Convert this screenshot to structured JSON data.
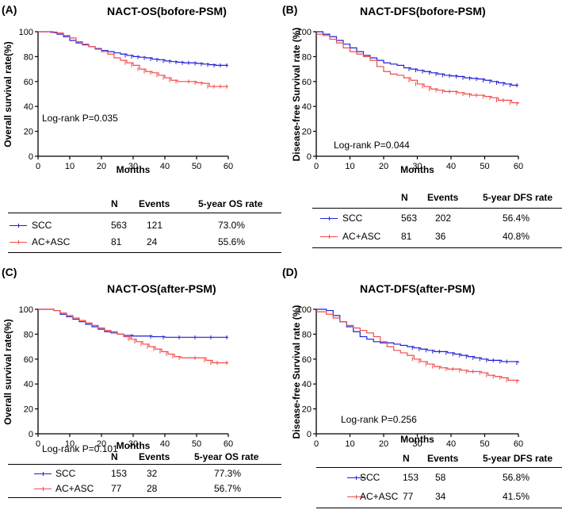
{
  "colors": {
    "scc": "#1f1fd6",
    "ac": "#f24a4a",
    "axis": "#000000"
  },
  "table_headers": {
    "n": "N",
    "events": "Events"
  },
  "chart_data": [
    {
      "type": "line",
      "label": "(A)",
      "title": "NACT-OS(bofore-PSM)",
      "xlabel": "Months",
      "ylabel": "Overall  survival rate(%)",
      "xlim": [
        0,
        60
      ],
      "ylim": [
        0,
        100
      ],
      "xticks": [
        0,
        10,
        20,
        30,
        40,
        50,
        60
      ],
      "yticks": [
        0,
        20,
        40,
        60,
        80,
        100
      ],
      "logrank": "Log-rank P=0.035",
      "rate_header": "5-year OS rate",
      "series": [
        {
          "name": "SCC",
          "n": "563",
          "events": "121",
          "rate": "73.0%",
          "x": [
            0,
            4,
            6,
            8,
            10,
            12,
            14,
            16,
            18,
            20,
            22,
            24,
            26,
            28,
            30,
            32,
            34,
            36,
            38,
            40,
            42,
            44,
            46,
            48,
            50,
            52,
            54,
            56,
            58,
            60
          ],
          "y": [
            100,
            99.5,
            98,
            96,
            93,
            91,
            89.5,
            88,
            86.5,
            85,
            84,
            83,
            82,
            81,
            80,
            79.5,
            79,
            78,
            77.5,
            76.5,
            76,
            75.5,
            75,
            75,
            74.5,
            74,
            73.5,
            73,
            73,
            73
          ]
        },
        {
          "name": "AC+ASC",
          "n": "81",
          "events": "24",
          "rate": "55.6%",
          "x": [
            0,
            5,
            8,
            10,
            12,
            14,
            16,
            18,
            20,
            22,
            24,
            26,
            28,
            30,
            32,
            34,
            36,
            38,
            40,
            42,
            44,
            48,
            50,
            52,
            54,
            56,
            58,
            60
          ],
          "y": [
            100,
            99,
            97,
            95,
            92,
            90,
            88,
            86,
            84,
            82,
            79,
            77,
            75,
            73,
            70,
            68,
            67,
            65,
            63,
            61,
            60,
            60,
            59,
            58.5,
            56,
            56,
            56,
            56
          ]
        }
      ]
    },
    {
      "type": "line",
      "label": "(B)",
      "title": "NACT-DFS(bofore-PSM)",
      "xlabel": "Months",
      "ylabel": "Disease-free Survival rate (%)",
      "xlim": [
        0,
        60
      ],
      "ylim": [
        0,
        100
      ],
      "xticks": [
        0,
        10,
        20,
        30,
        40,
        50,
        60
      ],
      "yticks": [
        0,
        20,
        40,
        60,
        80,
        100
      ],
      "logrank": "Log-rank P=0.044",
      "rate_header": "5-year DFS rate",
      "series": [
        {
          "name": "SCC",
          "n": "563",
          "events": "202",
          "rate": "56.4%",
          "x": [
            0,
            2,
            4,
            6,
            8,
            10,
            12,
            14,
            16,
            18,
            20,
            22,
            24,
            26,
            28,
            30,
            32,
            34,
            36,
            38,
            40,
            42,
            44,
            46,
            48,
            50,
            52,
            54,
            56,
            58,
            60
          ],
          "y": [
            100,
            98,
            96,
            93,
            90,
            87,
            84,
            81,
            79,
            77,
            75,
            74,
            73,
            71,
            70,
            69,
            68,
            67,
            66,
            65,
            64.5,
            64,
            63,
            62.5,
            62,
            61,
            60,
            59,
            58,
            57,
            57
          ]
        },
        {
          "name": "AC+ASC",
          "n": "81",
          "events": "36",
          "rate": "40.8%",
          "x": [
            0,
            2,
            4,
            6,
            8,
            10,
            12,
            14,
            16,
            18,
            20,
            22,
            24,
            26,
            28,
            30,
            32,
            34,
            36,
            38,
            40,
            42,
            44,
            46,
            48,
            50,
            52,
            54,
            56,
            58,
            60
          ],
          "y": [
            98,
            97,
            94,
            91,
            87,
            84,
            82,
            80,
            77,
            72,
            68,
            66,
            65,
            63,
            61,
            58,
            56,
            54,
            53,
            52,
            52,
            51,
            50,
            49,
            49,
            48,
            47,
            45,
            45,
            43,
            42
          ]
        }
      ]
    },
    {
      "type": "line",
      "label": "(C)",
      "title": "NACT-OS(after-PSM)",
      "xlabel": "Months",
      "ylabel": "Overall  survival rate(%)",
      "xlim": [
        0,
        60
      ],
      "ylim": [
        0,
        100
      ],
      "xticks": [
        0,
        10,
        20,
        30,
        40,
        50,
        60
      ],
      "yticks": [
        0,
        20,
        40,
        60,
        80,
        100
      ],
      "logrank": "Log-rank P=0.101",
      "rate_header": "5-year OS rate",
      "series": [
        {
          "name": "SCC",
          "n": "153",
          "events": "32",
          "rate": "77.3%",
          "x": [
            0,
            5,
            7,
            9,
            11,
            13,
            15,
            17,
            19,
            21,
            23,
            25,
            27,
            30,
            36,
            40,
            45,
            50,
            55,
            60
          ],
          "y": [
            100,
            99,
            96,
            94,
            92,
            90,
            88,
            86,
            84,
            82,
            81,
            80,
            79,
            78.5,
            78,
            77.5,
            77.5,
            77.5,
            77.5,
            77.5
          ]
        },
        {
          "name": "AC+ASC",
          "n": "77",
          "events": "28",
          "rate": "56.7%",
          "x": [
            0,
            5,
            7,
            9,
            11,
            13,
            15,
            17,
            19,
            21,
            23,
            25,
            27,
            29,
            31,
            33,
            35,
            37,
            39,
            41,
            43,
            45,
            50,
            53,
            55,
            57,
            60
          ],
          "y": [
            100,
            99,
            97,
            95,
            93,
            91,
            89,
            87,
            85,
            83,
            82,
            80,
            78,
            76,
            74,
            72,
            70,
            68,
            66,
            64,
            62,
            61,
            61,
            59,
            57,
            57,
            57
          ]
        }
      ]
    },
    {
      "type": "line",
      "label": "(D)",
      "title": "NACT-DFS(after-PSM)",
      "xlabel": "Months",
      "ylabel": "Disease-free Survival rate (%)",
      "xlim": [
        0,
        60
      ],
      "ylim": [
        0,
        100
      ],
      "xticks": [
        0,
        10,
        20,
        30,
        40,
        50,
        60
      ],
      "yticks": [
        0,
        20,
        40,
        60,
        80,
        100
      ],
      "logrank": "Log-rank P=0.256",
      "rate_header": "5-year DFS rate",
      "series": [
        {
          "name": "SCC",
          "n": "153",
          "events": "58",
          "rate": "56.8%",
          "x": [
            0,
            3,
            5,
            7,
            9,
            11,
            13,
            15,
            17,
            19,
            21,
            23,
            25,
            27,
            29,
            31,
            33,
            35,
            37,
            39,
            41,
            43,
            45,
            47,
            49,
            51,
            53,
            55,
            57,
            60
          ],
          "y": [
            100,
            99,
            95,
            90,
            86,
            82,
            78,
            76,
            74,
            73,
            73,
            72,
            71,
            70,
            69,
            68,
            67,
            66,
            66,
            65,
            64,
            63,
            62,
            61,
            60,
            59,
            59,
            58,
            58,
            57
          ]
        },
        {
          "name": "AC+ASC",
          "n": "77",
          "events": "34",
          "rate": "41.5%",
          "x": [
            0,
            3,
            5,
            7,
            9,
            11,
            13,
            15,
            17,
            19,
            21,
            23,
            25,
            27,
            29,
            31,
            33,
            35,
            37,
            39,
            41,
            43,
            45,
            47,
            49,
            51,
            53,
            55,
            57,
            60
          ],
          "y": [
            98,
            96,
            93,
            90,
            87,
            85,
            83,
            81,
            78,
            74,
            70,
            67,
            65,
            63,
            60,
            58,
            56,
            54,
            53,
            52,
            52,
            51,
            50,
            50,
            49,
            47,
            46,
            45,
            43,
            42
          ]
        }
      ]
    }
  ]
}
